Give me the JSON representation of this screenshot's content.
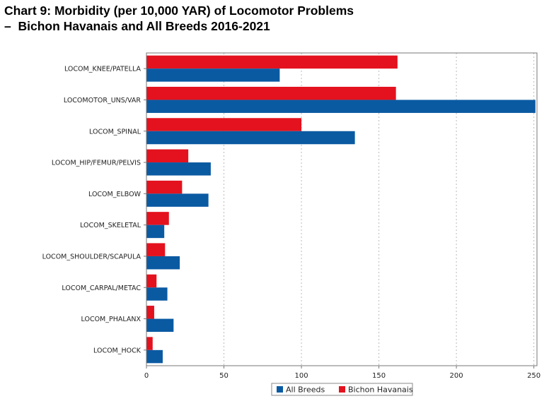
{
  "title_line1": "Chart 9: Morbidity (per 10,000 YAR) of Locomotor Problems",
  "title_line2": "–  Bichon Havanais and All Breeds 2016-2021",
  "chart_data": {
    "type": "bar",
    "orientation": "horizontal",
    "categories": [
      "LOCOM_KNEE/PATELLA",
      "LOCOMOTOR_UNS/VAR",
      "LOCOM_SPINAL",
      "LOCOM_HIP/FEMUR/PELVIS",
      "LOCOM_ELBOW",
      "LOCOM_SKELETAL",
      "LOCOM_SHOULDER/SCAPULA",
      "LOCOM_CARPAL/METAC",
      "LOCOM_PHALANX",
      "LOCOM_HOCK"
    ],
    "series": [
      {
        "name": "Bichon Havanais",
        "color": "#e3121e",
        "values": [
          162,
          161,
          100,
          27,
          23,
          14.5,
          12,
          6.5,
          5,
          4
        ]
      },
      {
        "name": "All Breeds",
        "color": "#0a5aa2",
        "values": [
          86,
          251,
          134.5,
          41.5,
          40,
          11.5,
          21.5,
          13.5,
          17.5,
          10.5
        ]
      }
    ],
    "legend_order": [
      "All Breeds",
      "Bichon Havanais"
    ],
    "xlim": [
      0,
      252
    ],
    "xticks": [
      0,
      50,
      100,
      150,
      200,
      250
    ],
    "grid": "vertical-dotted",
    "legend_position": "bottom-center",
    "xlabel": "",
    "ylabel": ""
  }
}
